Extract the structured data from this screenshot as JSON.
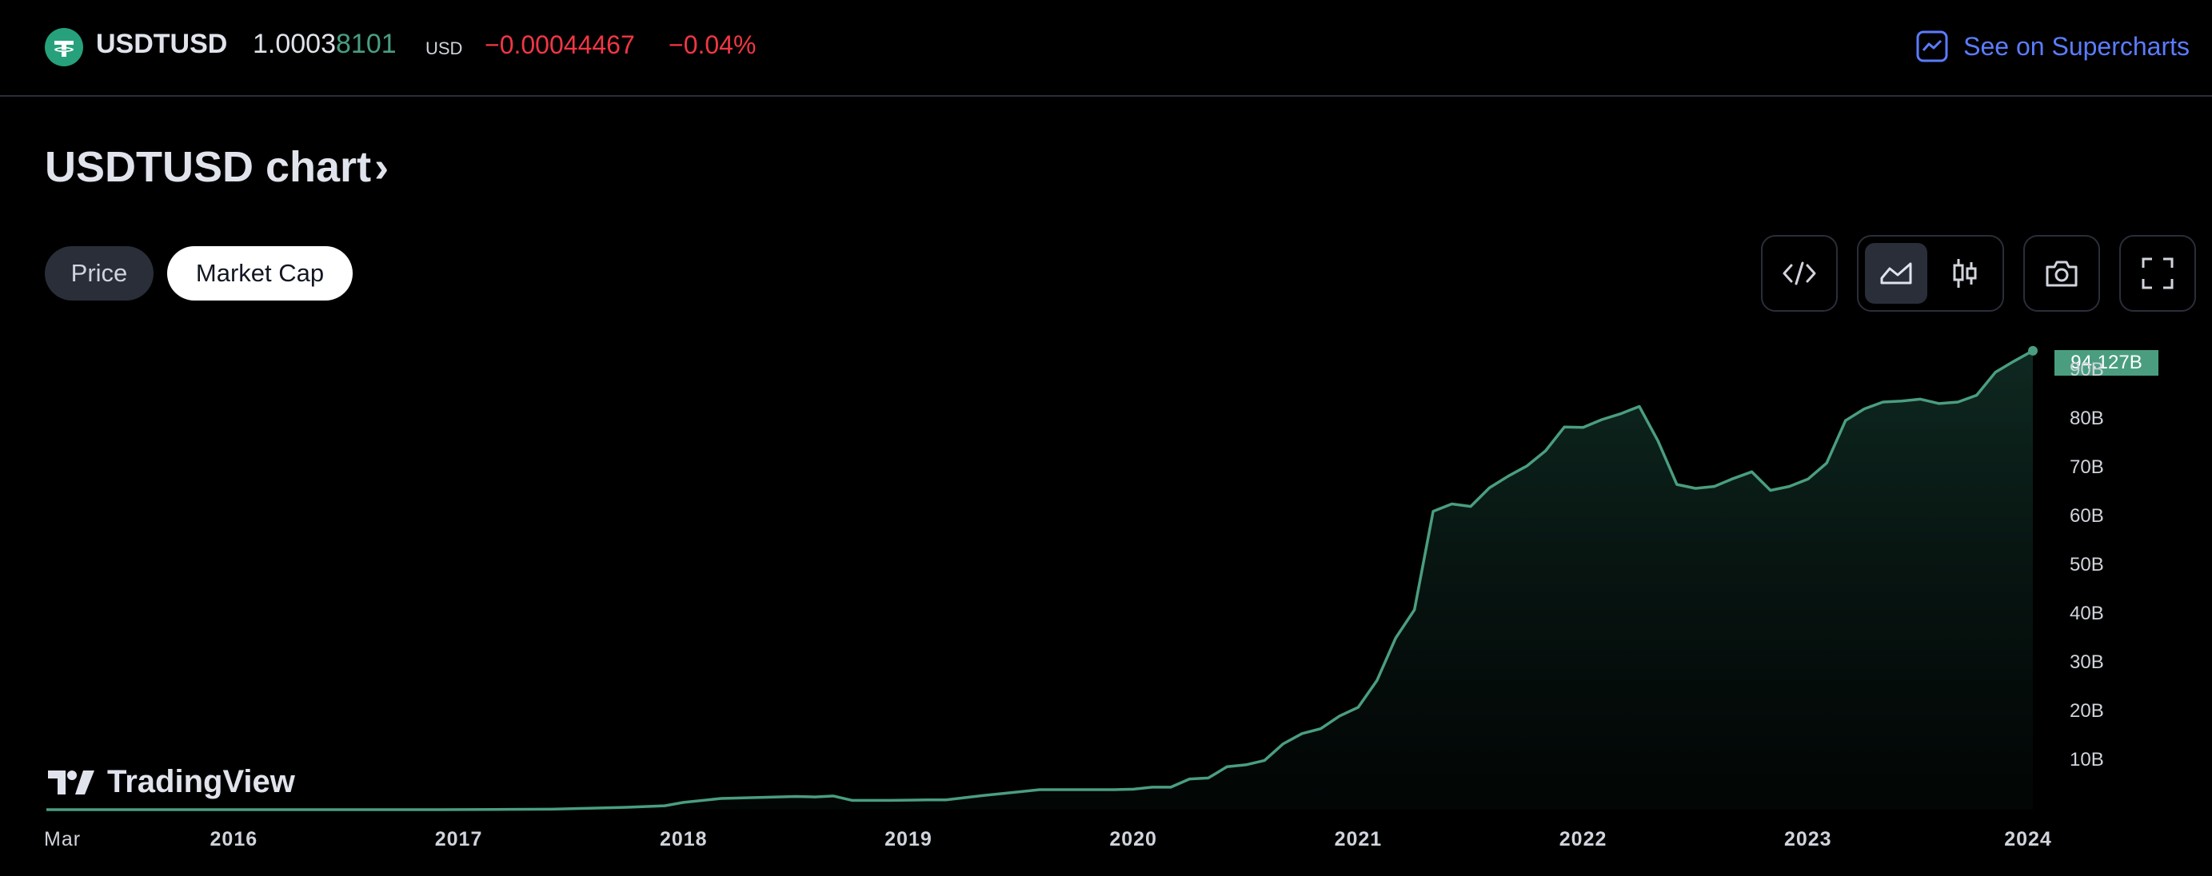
{
  "header": {
    "symbol": "USDTUSD",
    "price_main": "1.0003",
    "price_tail": "8101",
    "currency": "USD",
    "change": "−0.00044467",
    "change_pct": "−0.04%",
    "supercharts_link": "See on Supercharts"
  },
  "title": "USDTUSD chart",
  "title_chevron": "›",
  "tabs": {
    "price": "Price",
    "market_cap": "Market Cap",
    "active": "Market Cap"
  },
  "toolbar": {
    "embed_icon": "embed-code-icon",
    "area_icon": "area-chart-icon",
    "candle_icon": "candlestick-icon",
    "snapshot_icon": "camera-icon",
    "fullscreen_icon": "fullscreen-icon"
  },
  "branding": "TradingView",
  "colors": {
    "line": "#4a9e7f",
    "negative": "#f23645",
    "link": "#5b7cff"
  },
  "chart_data": {
    "type": "area",
    "series": [
      {
        "values_in_billions": true
      }
    ],
    "x": [
      "2015-03",
      "2015-06",
      "2015-09",
      "2015-12",
      "2016-03",
      "2016-06",
      "2016-09",
      "2016-12",
      "2017-03",
      "2017-06",
      "2017-09",
      "2017-10",
      "2017-12",
      "2018-01",
      "2018-03",
      "2018-05",
      "2018-07",
      "2018-08",
      "2018-09",
      "2018-10",
      "2018-12",
      "2019-02",
      "2019-03",
      "2019-05",
      "2019-06",
      "2019-08",
      "2019-10",
      "2019-12",
      "2020-01",
      "2020-02",
      "2020-03",
      "2020-04",
      "2020-05",
      "2020-06",
      "2020-07",
      "2020-08",
      "2020-09",
      "2020-10",
      "2020-11",
      "2020-12",
      "2021-01",
      "2021-02",
      "2021-03",
      "2021-04",
      "2021-05",
      "2021-06",
      "2021-07",
      "2021-08",
      "2021-09",
      "2021-10",
      "2021-11",
      "2021-12",
      "2022-01",
      "2022-02",
      "2022-03",
      "2022-04",
      "2022-05",
      "2022-06",
      "2022-07",
      "2022-08",
      "2022-09",
      "2022-10",
      "2022-11",
      "2022-12",
      "2023-01",
      "2023-02",
      "2023-03",
      "2023-04",
      "2023-05",
      "2023-06",
      "2023-07",
      "2023-08",
      "2023-09",
      "2023-10",
      "2023-11",
      "2023-12",
      "2024-01"
    ],
    "values": [
      0.0,
      0.0,
      0.0,
      0.0,
      0.0,
      0.0,
      0.0,
      0.0,
      0.05,
      0.1,
      0.4,
      0.5,
      0.8,
      1.5,
      2.3,
      2.5,
      2.7,
      2.6,
      2.8,
      1.9,
      1.9,
      2.0,
      2.0,
      2.9,
      3.3,
      4.1,
      4.1,
      4.1,
      4.2,
      4.6,
      4.6,
      6.3,
      6.5,
      8.8,
      9.2,
      10.1,
      13.5,
      15.6,
      16.6,
      19.2,
      21.0,
      26.5,
      35.2,
      41.0,
      61.2,
      62.7,
      62.2,
      66.0,
      68.4,
      70.5,
      73.6,
      78.5,
      78.4,
      80.0,
      81.2,
      82.7,
      75.6,
      66.7,
      65.9,
      66.3,
      67.9,
      69.3,
      65.5,
      66.3,
      67.8,
      71.1,
      79.8,
      82.2,
      83.6,
      83.8,
      84.2,
      83.3,
      83.6,
      85.0,
      89.7,
      92.0,
      94.127
    ],
    "last_value_label": "94.127B",
    "yticks": [
      "10B",
      "20B",
      "30B",
      "40B",
      "50B",
      "60B",
      "70B",
      "80B",
      "90B"
    ],
    "xticks": [
      "Mar",
      "2016",
      "2017",
      "2018",
      "2019",
      "2020",
      "2021",
      "2022",
      "2023",
      "2024"
    ],
    "ylim": [
      0,
      95
    ],
    "grid": false,
    "legend": "none"
  }
}
